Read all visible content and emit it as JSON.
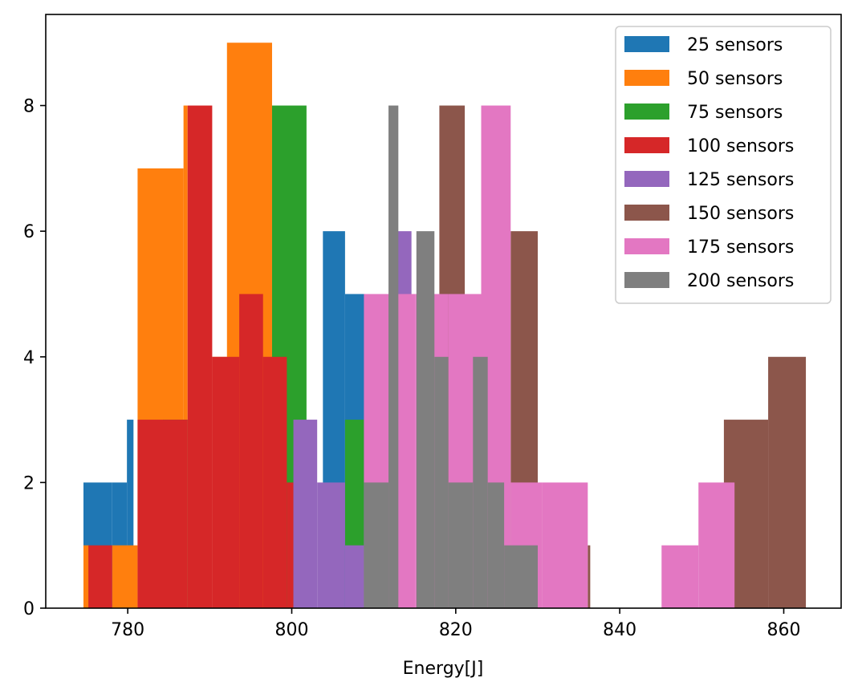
{
  "chart_data": {
    "type": "bar",
    "subtype": "overlaid-histogram",
    "title": "",
    "xlabel": "Energy[J]",
    "ylabel": "",
    "xlim": [
      770.0,
      867.0
    ],
    "ylim": [
      0,
      9.45
    ],
    "x_ticks": [
      780,
      800,
      820,
      840,
      860
    ],
    "y_ticks": [
      0,
      2,
      4,
      6,
      8
    ],
    "grid": false,
    "legend_position": "top-right",
    "series": [
      {
        "name": "25 sensors",
        "color": "#1f77b4",
        "bins": [
          {
            "x0": 774.6,
            "x1": 778.1,
            "count": 2
          },
          {
            "x0": 778.1,
            "x1": 779.9,
            "count": 2
          },
          {
            "x0": 779.9,
            "x1": 780.7,
            "count": 3
          },
          {
            "x0": 803.8,
            "x1": 806.5,
            "count": 6
          },
          {
            "x0": 806.5,
            "x1": 809.0,
            "count": 5
          }
        ]
      },
      {
        "name": "50 sensors",
        "color": "#ff7f0e",
        "bins": [
          {
            "x0": 774.6,
            "x1": 775.3,
            "count": 1
          },
          {
            "x0": 778.1,
            "x1": 781.2,
            "count": 1
          },
          {
            "x0": 781.2,
            "x1": 786.8,
            "count": 7
          },
          {
            "x0": 786.8,
            "x1": 787.3,
            "count": 8
          },
          {
            "x0": 790.3,
            "x1": 792.1,
            "count": 4
          },
          {
            "x0": 792.1,
            "x1": 797.6,
            "count": 9
          }
        ]
      },
      {
        "name": "75 sensors",
        "color": "#2ca02c",
        "bins": [
          {
            "x0": 784.3,
            "x1": 787.3,
            "count": 3
          },
          {
            "x0": 797.6,
            "x1": 801.8,
            "count": 8
          },
          {
            "x0": 806.5,
            "x1": 808.8,
            "count": 3
          }
        ]
      },
      {
        "name": "100 sensors",
        "color": "#d62728",
        "bins": [
          {
            "x0": 775.2,
            "x1": 778.1,
            "count": 1
          },
          {
            "x0": 781.2,
            "x1": 787.3,
            "count": 3
          },
          {
            "x0": 787.3,
            "x1": 790.3,
            "count": 8
          },
          {
            "x0": 790.3,
            "x1": 793.6,
            "count": 4
          },
          {
            "x0": 793.6,
            "x1": 796.5,
            "count": 5
          },
          {
            "x0": 796.5,
            "x1": 799.4,
            "count": 4
          },
          {
            "x0": 799.4,
            "x1": 800.2,
            "count": 2
          }
        ]
      },
      {
        "name": "125 sensors",
        "color": "#9467bd",
        "bins": [
          {
            "x0": 800.2,
            "x1": 803.1,
            "count": 3
          },
          {
            "x0": 803.1,
            "x1": 806.5,
            "count": 2
          },
          {
            "x0": 806.5,
            "x1": 808.8,
            "count": 1
          },
          {
            "x0": 812.8,
            "x1": 814.6,
            "count": 6
          }
        ]
      },
      {
        "name": "150 sensors",
        "color": "#8c564b",
        "bins": [
          {
            "x0": 818.0,
            "x1": 821.1,
            "count": 8
          },
          {
            "x0": 826.7,
            "x1": 830.0,
            "count": 6
          },
          {
            "x0": 836.1,
            "x1": 836.4,
            "count": 1
          },
          {
            "x0": 852.7,
            "x1": 858.1,
            "count": 3
          },
          {
            "x0": 858.1,
            "x1": 862.7,
            "count": 4
          }
        ]
      },
      {
        "name": "175 sensors",
        "color": "#e377c2",
        "bins": [
          {
            "x0": 808.8,
            "x1": 812.8,
            "count": 5
          },
          {
            "x0": 812.8,
            "x1": 815.1,
            "count": 5
          },
          {
            "x0": 815.1,
            "x1": 819.1,
            "count": 5
          },
          {
            "x0": 819.1,
            "x1": 823.1,
            "count": 5
          },
          {
            "x0": 823.1,
            "x1": 826.7,
            "count": 8
          },
          {
            "x0": 826.7,
            "x1": 830.5,
            "count": 2
          },
          {
            "x0": 830.5,
            "x1": 836.1,
            "count": 2
          },
          {
            "x0": 845.1,
            "x1": 849.6,
            "count": 1
          },
          {
            "x0": 849.6,
            "x1": 854.0,
            "count": 2
          }
        ]
      },
      {
        "name": "200 sensors",
        "color": "#7f7f7f",
        "bins": [
          {
            "x0": 808.8,
            "x1": 811.8,
            "count": 2
          },
          {
            "x0": 811.8,
            "x1": 813.0,
            "count": 8
          },
          {
            "x0": 815.2,
            "x1": 817.4,
            "count": 6
          },
          {
            "x0": 817.4,
            "x1": 819.1,
            "count": 4
          },
          {
            "x0": 819.1,
            "x1": 822.1,
            "count": 2
          },
          {
            "x0": 822.1,
            "x1": 823.9,
            "count": 4
          },
          {
            "x0": 823.9,
            "x1": 825.9,
            "count": 2
          },
          {
            "x0": 825.9,
            "x1": 830.0,
            "count": 1
          }
        ]
      }
    ]
  }
}
